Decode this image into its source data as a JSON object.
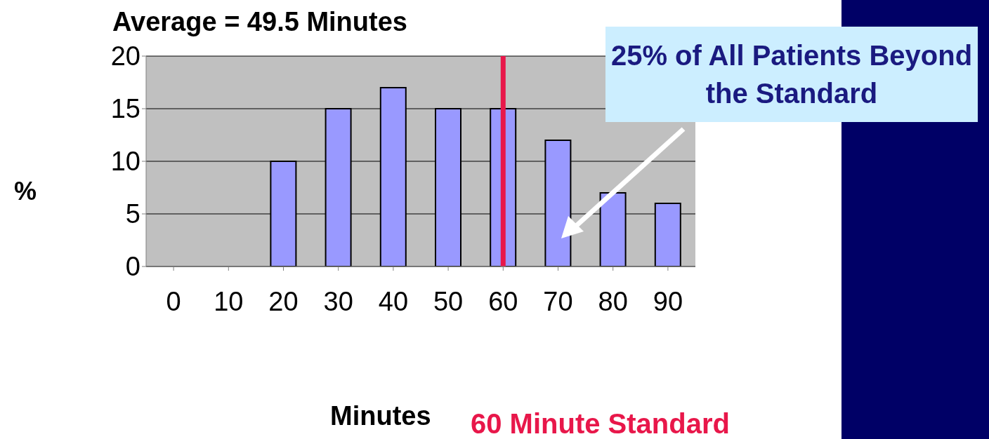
{
  "chart_data": {
    "type": "bar",
    "title": "Average = 49.5 Minutes",
    "xlabel": "Minutes",
    "ylabel": "%",
    "categories": [
      "0",
      "10",
      "20",
      "30",
      "40",
      "50",
      "60",
      "70",
      "80",
      "90"
    ],
    "values": [
      0,
      0,
      10,
      15,
      17,
      15,
      15,
      12,
      7,
      6
    ],
    "color": "#9999ff",
    "ylim": [
      0,
      20
    ],
    "yticks": [
      0,
      5,
      10,
      15,
      20
    ],
    "grid": "y",
    "ref_lines": [
      {
        "axis": "x",
        "value": "60",
        "label": "60 Minute Standard",
        "color": "#e8174a"
      }
    ],
    "annotations": [
      "25% of All Patients Beyond the Standard"
    ]
  }
}
